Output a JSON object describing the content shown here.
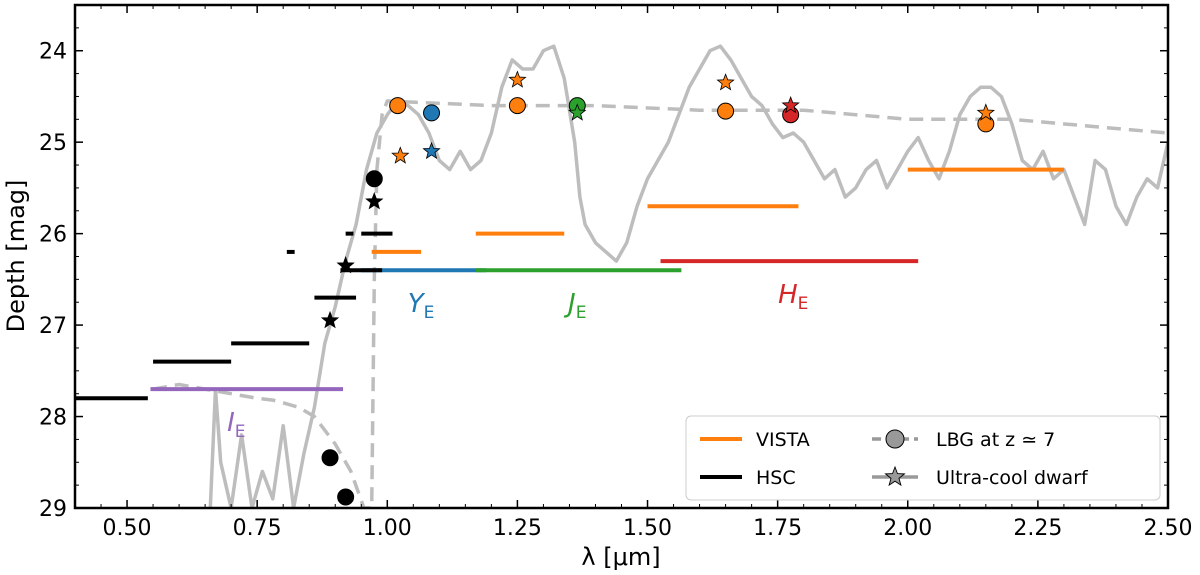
{
  "chart_data": {
    "type": "line",
    "xlabel": "λ [μm]",
    "ylabel": "Depth [mag]",
    "xlim": [
      0.4,
      2.5
    ],
    "ylim": [
      29.0,
      23.5
    ],
    "y_inverted": true,
    "x_ticks": [
      "0.50",
      "0.75",
      "1.00",
      "1.25",
      "1.50",
      "1.75",
      "2.00",
      "2.25",
      "2.50"
    ],
    "x_tick_values": [
      0.5,
      0.75,
      1.0,
      1.25,
      1.5,
      1.75,
      2.0,
      2.25,
      2.5
    ],
    "y_ticks": [
      "24",
      "25",
      "26",
      "27",
      "28",
      "29"
    ],
    "y_tick_values": [
      24,
      25,
      26,
      27,
      28,
      29
    ],
    "colors": {
      "vista": "#ff7f0e",
      "hsc": "#000000",
      "IE": "#9467bd",
      "YE": "#1f77b4",
      "JE": "#2ca02c",
      "HE": "#d62728",
      "model": "#bdbdbd"
    },
    "lbg_spectrum": {
      "name": "LBG at z ≃ 7",
      "style": "dashed",
      "x": [
        0.55,
        0.6,
        0.65,
        0.7,
        0.75,
        0.78,
        0.8,
        0.83,
        0.86,
        0.9,
        0.93,
        0.955,
        0.97,
        0.975,
        0.98,
        0.99,
        1.0,
        1.2,
        1.4,
        1.6,
        1.8,
        1.9,
        2.0,
        2.2,
        2.4,
        2.5
      ],
      "y": [
        27.7,
        27.65,
        27.7,
        27.75,
        27.8,
        27.82,
        27.85,
        27.9,
        28.0,
        28.3,
        28.6,
        29.0,
        29.0,
        26.5,
        25.3,
        24.7,
        24.55,
        24.6,
        24.6,
        24.65,
        24.65,
        24.7,
        24.75,
        24.75,
        24.85,
        24.9
      ]
    },
    "dwarf_spectrum": {
      "name": "Ultra-cool dwarf",
      "style": "solid",
      "x": [
        0.66,
        0.67,
        0.68,
        0.7,
        0.72,
        0.74,
        0.76,
        0.78,
        0.8,
        0.82,
        0.84,
        0.86,
        0.88,
        0.9,
        0.92,
        0.94,
        0.96,
        0.98,
        1.0,
        1.02,
        1.04,
        1.06,
        1.08,
        1.1,
        1.12,
        1.14,
        1.16,
        1.18,
        1.2,
        1.22,
        1.24,
        1.26,
        1.28,
        1.3,
        1.32,
        1.34,
        1.36,
        1.37,
        1.38,
        1.4,
        1.42,
        1.44,
        1.46,
        1.48,
        1.5,
        1.52,
        1.54,
        1.56,
        1.58,
        1.6,
        1.62,
        1.64,
        1.66,
        1.68,
        1.7,
        1.72,
        1.74,
        1.76,
        1.78,
        1.8,
        1.82,
        1.84,
        1.86,
        1.88,
        1.9,
        1.92,
        1.94,
        1.96,
        1.98,
        2.0,
        2.02,
        2.04,
        2.06,
        2.08,
        2.1,
        2.12,
        2.14,
        2.16,
        2.18,
        2.2,
        2.22,
        2.24,
        2.26,
        2.28,
        2.3,
        2.32,
        2.34,
        2.36,
        2.38,
        2.4,
        2.42,
        2.44,
        2.46,
        2.48,
        2.5
      ],
      "y": [
        29.0,
        27.7,
        28.5,
        29.0,
        28.2,
        29.0,
        28.6,
        28.9,
        28.1,
        29.0,
        28.4,
        27.9,
        27.2,
        26.8,
        26.3,
        25.9,
        25.3,
        24.9,
        24.7,
        24.55,
        24.6,
        24.7,
        24.9,
        25.2,
        25.3,
        25.1,
        25.3,
        25.2,
        24.9,
        24.4,
        24.1,
        24.2,
        24.2,
        24.0,
        23.95,
        24.3,
        25.0,
        25.6,
        25.9,
        26.1,
        26.2,
        26.3,
        26.1,
        25.7,
        25.4,
        25.2,
        25.0,
        24.7,
        24.4,
        24.2,
        24.0,
        23.95,
        24.1,
        24.3,
        24.5,
        24.6,
        24.8,
        24.95,
        24.9,
        25.0,
        25.2,
        25.4,
        25.3,
        25.6,
        25.5,
        25.3,
        25.2,
        25.5,
        25.3,
        25.1,
        24.95,
        25.2,
        25.4,
        25.1,
        24.7,
        24.5,
        24.4,
        24.4,
        24.5,
        24.8,
        25.2,
        25.3,
        25.1,
        25.4,
        25.3,
        25.6,
        25.9,
        25.2,
        25.3,
        25.7,
        25.9,
        25.6,
        25.4,
        25.5,
        25.0
      ]
    },
    "vista_lines": [
      {
        "x": [
          0.97,
          1.065
        ],
        "y": 26.2
      },
      {
        "x": [
          1.17,
          1.34
        ],
        "y": 26.0
      },
      {
        "x": [
          1.5,
          1.79
        ],
        "y": 25.7
      },
      {
        "x": [
          2.0,
          2.3
        ],
        "y": 25.3
      }
    ],
    "hsc_lines": [
      {
        "x": [
          0.4,
          0.54
        ],
        "y": 27.8
      },
      {
        "x": [
          0.55,
          0.7
        ],
        "y": 27.4
      },
      {
        "x": [
          0.7,
          0.85
        ],
        "y": 27.2
      },
      {
        "x": [
          0.86,
          0.94
        ],
        "y": 26.7
      },
      {
        "x": [
          0.91,
          0.99
        ],
        "y": 26.4
      },
      {
        "x": [
          0.95,
          1.01
        ],
        "y": 26.0
      },
      {
        "x": [
          0.92,
          0.935
        ],
        "y": 26.0
      },
      {
        "x": [
          0.807,
          0.822
        ],
        "y": 26.2
      }
    ],
    "euclid_bands": [
      {
        "label": "I",
        "sub": "E",
        "x": [
          0.545,
          0.915
        ],
        "y": 27.7,
        "color": "#9467bd",
        "label_x": 0.71,
        "label_y": 28.05
      },
      {
        "label": "Y",
        "sub": "E",
        "x": [
          0.95,
          1.19
        ],
        "y": 26.4,
        "color": "#1f77b4",
        "label_x": 1.065,
        "label_y": 26.75
      },
      {
        "label": "J",
        "sub": "E",
        "x": [
          1.17,
          1.565
        ],
        "y": 26.4,
        "color": "#2ca02c",
        "label_x": 1.365,
        "label_y": 26.75
      },
      {
        "label": "H",
        "sub": "E",
        "x": [
          1.525,
          2.02
        ],
        "y": 26.3,
        "color": "#d62728",
        "label_x": 1.78,
        "label_y": 26.65
      }
    ],
    "lbg_points": [
      {
        "x": 0.89,
        "y": 28.45,
        "color": "#000000"
      },
      {
        "x": 0.92,
        "y": 28.88,
        "color": "#000000"
      },
      {
        "x": 0.975,
        "y": 25.4,
        "color": "#000000"
      },
      {
        "x": 1.02,
        "y": 24.6,
        "color": "#ff7f0e"
      },
      {
        "x": 1.085,
        "y": 24.68,
        "color": "#1f77b4"
      },
      {
        "x": 1.25,
        "y": 24.6,
        "color": "#ff7f0e"
      },
      {
        "x": 1.365,
        "y": 24.6,
        "color": "#2ca02c"
      },
      {
        "x": 1.65,
        "y": 24.66,
        "color": "#ff7f0e"
      },
      {
        "x": 1.775,
        "y": 24.7,
        "color": "#d62728"
      },
      {
        "x": 2.15,
        "y": 24.8,
        "color": "#ff7f0e"
      }
    ],
    "dwarf_points": [
      {
        "x": 0.89,
        "y": 26.95,
        "color": "#000000"
      },
      {
        "x": 0.92,
        "y": 26.35,
        "color": "#000000"
      },
      {
        "x": 0.975,
        "y": 25.65,
        "color": "#000000"
      },
      {
        "x": 1.025,
        "y": 25.15,
        "color": "#ff7f0e"
      },
      {
        "x": 1.085,
        "y": 25.1,
        "color": "#1f77b4"
      },
      {
        "x": 1.25,
        "y": 24.32,
        "color": "#ff7f0e"
      },
      {
        "x": 1.365,
        "y": 24.68,
        "color": "#2ca02c"
      },
      {
        "x": 1.65,
        "y": 24.35,
        "color": "#ff7f0e"
      },
      {
        "x": 1.775,
        "y": 24.6,
        "color": "#d62728"
      },
      {
        "x": 2.15,
        "y": 24.68,
        "color": "#ff7f0e"
      }
    ],
    "legend": {
      "position": "bottom-right",
      "entries": [
        {
          "label": "VISTA",
          "kind": "line",
          "color": "#ff7f0e"
        },
        {
          "label": "LBG at z ≃ 7",
          "kind": "dashed-circle",
          "color": "#999999"
        },
        {
          "label": "HSC",
          "kind": "line",
          "color": "#000000"
        },
        {
          "label": "Ultra-cool dwarf",
          "kind": "solid-star",
          "color": "#999999"
        }
      ]
    }
  }
}
